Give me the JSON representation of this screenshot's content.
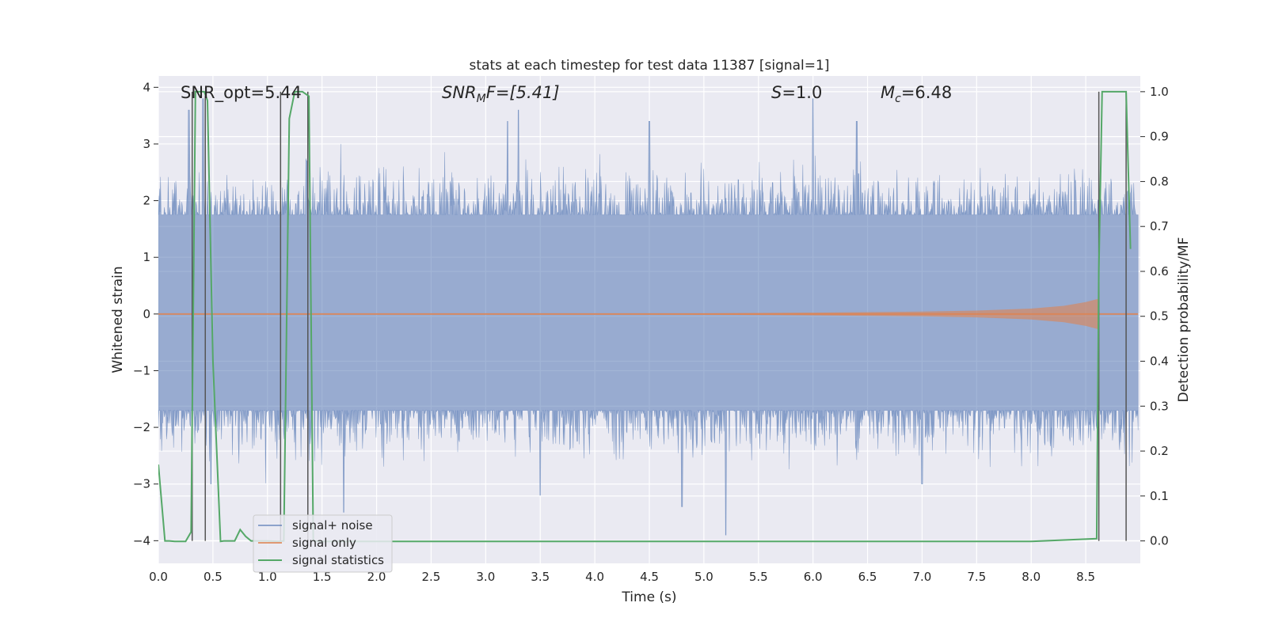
{
  "chart_data": {
    "type": "line",
    "title": "stats at each timestep for test data 11387 [signal=1]",
    "xlabel": "Time (s)",
    "ylabel_left": "Whitened strain",
    "ylabel_right": "Detection probability/MF",
    "xlim": [
      0.0,
      9.0
    ],
    "ylim_left": [
      -4.4,
      4.2
    ],
    "ylim_right": [
      -0.05,
      1.035
    ],
    "xticks": [
      "0.0",
      "0.5",
      "1.0",
      "1.5",
      "2.0",
      "2.5",
      "3.0",
      "3.5",
      "4.0",
      "4.5",
      "5.0",
      "5.5",
      "6.0",
      "6.5",
      "7.0",
      "7.5",
      "8.0",
      "8.5"
    ],
    "yticks_left": [
      "4",
      "3",
      "2",
      "1",
      "0",
      "−1",
      "−2",
      "−3",
      "−4"
    ],
    "yticks_right": [
      "1.0",
      "0.9",
      "0.8",
      "0.7",
      "0.6",
      "0.5",
      "0.4",
      "0.3",
      "0.2",
      "0.1",
      "0.0"
    ],
    "grid": true,
    "background": "#eaeaf2",
    "legend_position": "lower-left",
    "annotations": {
      "snr_opt": "SNR_opt=5.44",
      "snr_mf_main": "SNR",
      "snr_mf_sub": "M",
      "snr_mf_rest": "F=[5.41]",
      "s_main": "S",
      "s_rest": "=1.0",
      "mc_main": "M",
      "mc_sub": "c",
      "mc_rest": "=6.48"
    },
    "series": [
      {
        "name": "signal+ noise",
        "color": "#4c72b0",
        "axis": "left",
        "style": "noise band",
        "envelope": {
          "lower": -1.7,
          "upper": 1.75
        },
        "peaks_x": [
          0.28,
          0.41,
          1.36,
          3.2,
          3.3,
          4.5,
          6.0,
          6.4
        ],
        "peaks_y": [
          3.6,
          3.8,
          2.7,
          3.4,
          3.6,
          3.4,
          3.8,
          3.4
        ],
        "troughs_x": [
          0.48,
          1.7,
          3.5,
          4.8,
          5.2,
          7.0
        ],
        "troughs_y": [
          -3.0,
          -3.5,
          -3.2,
          -3.4,
          -3.9,
          -3.0
        ]
      },
      {
        "name": "signal only",
        "color": "#dd8452",
        "axis": "left",
        "style": "chirp",
        "x": [
          0.0,
          4.0,
          5.0,
          6.0,
          7.0,
          7.5,
          8.0,
          8.3,
          8.5,
          8.62
        ],
        "amplitude": [
          0.0,
          0.01,
          0.02,
          0.04,
          0.07,
          0.1,
          0.16,
          0.24,
          0.35,
          0.45
        ]
      },
      {
        "name": "signal statistics",
        "color": "#55a868",
        "axis": "right",
        "x": [
          0.0,
          0.06,
          0.1,
          0.15,
          0.25,
          0.3,
          0.34,
          0.38,
          0.42,
          0.45,
          0.5,
          0.57,
          0.6,
          0.65,
          0.7,
          0.75,
          0.8,
          0.85,
          0.9,
          1.0,
          1.1,
          1.15,
          1.2,
          1.25,
          1.32,
          1.38,
          1.42,
          1.48,
          1.6,
          3.0,
          5.0,
          7.0,
          8.0,
          8.6,
          8.62,
          8.65,
          8.7,
          8.8,
          8.87,
          8.91
        ],
        "y": [
          0.17,
          0.0,
          0.0,
          -0.001,
          -0.001,
          0.02,
          1.0,
          1.0,
          1.0,
          0.98,
          0.4,
          -0.001,
          0.0,
          0.0,
          0.0,
          0.025,
          0.01,
          0.0,
          0.0,
          0.0,
          -0.001,
          0.0,
          0.94,
          1.0,
          1.0,
          0.99,
          0.0,
          -0.001,
          -0.001,
          -0.001,
          -0.001,
          -0.001,
          -0.001,
          0.005,
          0.6,
          1.0,
          1.0,
          1.0,
          1.0,
          0.65
        ]
      }
    ],
    "vertical_markers": {
      "color": "#555555",
      "x": [
        0.31,
        0.43,
        1.12,
        1.37,
        8.62,
        8.87
      ]
    }
  }
}
